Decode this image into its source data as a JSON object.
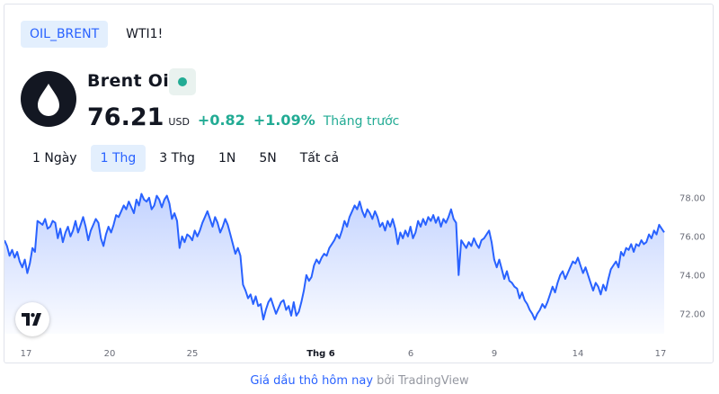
{
  "symbol_tabs": [
    {
      "label": "OIL_BRENT",
      "active": true
    },
    {
      "label": "WTI1!",
      "active": false
    }
  ],
  "symbol": {
    "name": "Brent Oil",
    "logo_icon": "oil-drop-icon",
    "status": "market-open",
    "status_color": "#22ab94"
  },
  "quote": {
    "price": "76.21",
    "currency": "USD",
    "change": "+0.82",
    "change_percent": "+1.09%",
    "period_note": "Tháng trước",
    "positive_color": "#22ab94"
  },
  "range_tabs": [
    {
      "label": "1 Ngày",
      "active": false
    },
    {
      "label": "1 Thg",
      "active": true
    },
    {
      "label": "3 Thg",
      "active": false
    },
    {
      "label": "1N",
      "active": false
    },
    {
      "label": "5N",
      "active": false
    },
    {
      "label": "Tất cả",
      "active": false
    }
  ],
  "chart_data": {
    "type": "area",
    "line_color": "#2962ff",
    "fill_color": "#e3ebff",
    "y_ticks": [
      "78.00",
      "76.00",
      "74.00",
      "72.00"
    ],
    "ylim": [
      71.2,
      78.5
    ],
    "x_ticks": [
      {
        "label": "17",
        "bold": false
      },
      {
        "label": "20",
        "bold": false
      },
      {
        "label": "25",
        "bold": false
      },
      {
        "label": "Thg 6",
        "bold": true
      },
      {
        "label": "6",
        "bold": false
      },
      {
        "label": "9",
        "bold": false
      },
      {
        "label": "14",
        "bold": false
      },
      {
        "label": "17",
        "bold": false
      }
    ],
    "values": [
      75.8,
      75.5,
      75.0,
      75.3,
      74.9,
      75.2,
      74.7,
      74.4,
      74.8,
      74.1,
      74.6,
      75.4,
      75.2,
      76.8,
      76.7,
      76.6,
      76.9,
      76.4,
      76.5,
      76.8,
      76.7,
      75.9,
      76.4,
      75.7,
      76.2,
      76.5,
      76.0,
      76.3,
      76.8,
      76.2,
      76.6,
      77.0,
      76.5,
      75.8,
      76.3,
      76.6,
      76.9,
      76.7,
      75.9,
      75.5,
      76.1,
      76.5,
      76.2,
      76.6,
      77.1,
      77.0,
      77.3,
      77.6,
      77.4,
      77.8,
      77.5,
      77.2,
      77.9,
      77.6,
      78.2,
      77.9,
      77.8,
      78.0,
      77.4,
      77.6,
      78.1,
      77.9,
      77.5,
      77.9,
      78.1,
      77.7,
      76.9,
      77.2,
      76.8,
      75.4,
      76.0,
      75.7,
      76.1,
      76.0,
      75.8,
      76.3,
      76.0,
      76.3,
      76.7,
      77.0,
      77.3,
      76.9,
      76.5,
      77.0,
      76.7,
      76.2,
      76.5,
      76.9,
      76.6,
      76.1,
      75.6,
      75.1,
      75.4,
      75.0,
      73.5,
      73.2,
      72.8,
      73.0,
      72.5,
      72.9,
      72.4,
      72.5,
      71.7,
      72.2,
      72.6,
      72.8,
      72.4,
      72.0,
      72.3,
      72.6,
      72.7,
      72.2,
      72.4,
      71.9,
      72.6,
      71.9,
      72.1,
      72.6,
      73.2,
      74.0,
      73.7,
      73.9,
      74.5,
      74.8,
      74.6,
      74.9,
      75.1,
      75.0,
      75.4,
      75.6,
      75.8,
      76.1,
      75.9,
      76.3,
      76.8,
      76.5,
      77.0,
      77.3,
      77.6,
      77.4,
      77.8,
      77.3,
      77.0,
      77.4,
      77.2,
      76.9,
      77.3,
      77.0,
      76.5,
      76.7,
      76.3,
      76.8,
      76.5,
      76.9,
      76.4,
      75.6,
      76.2,
      75.9,
      76.3,
      76.0,
      76.5,
      75.9,
      76.2,
      76.8,
      76.5,
      76.9,
      76.6,
      77.0,
      76.8,
      77.1,
      76.7,
      77.0,
      76.5,
      76.9,
      76.7,
      77.0,
      77.4,
      76.9,
      76.7,
      74.0,
      75.8,
      75.6,
      75.4,
      75.7,
      75.5,
      75.9,
      75.6,
      75.4,
      75.8,
      75.9,
      76.1,
      76.3,
      75.7,
      74.8,
      74.4,
      74.8,
      74.3,
      73.8,
      74.2,
      73.7,
      73.6,
      73.4,
      73.3,
      72.8,
      73.1,
      72.7,
      72.5,
      72.2,
      72.0,
      71.7,
      72.0,
      72.2,
      72.5,
      72.3,
      72.6,
      73.0,
      73.4,
      73.1,
      73.6,
      74.0,
      74.2,
      73.8,
      74.1,
      74.4,
      74.7,
      74.6,
      74.9,
      74.5,
      74.1,
      74.4,
      74.0,
      73.6,
      73.2,
      73.6,
      73.4,
      73.0,
      73.5,
      73.2,
      73.8,
      74.3,
      74.5,
      74.7,
      74.4,
      75.2,
      75.0,
      75.4,
      75.3,
      75.6,
      75.2,
      75.6,
      75.5,
      75.8,
      75.6,
      75.7,
      76.1,
      75.9,
      76.3,
      76.1,
      76.6,
      76.4,
      76.21
    ]
  },
  "branding": {
    "tv_icon": "tradingview-logo-icon"
  },
  "footer": {
    "link_text": "Giá dầu thô hôm nay",
    "suffix_text": " bởi TradingView"
  }
}
